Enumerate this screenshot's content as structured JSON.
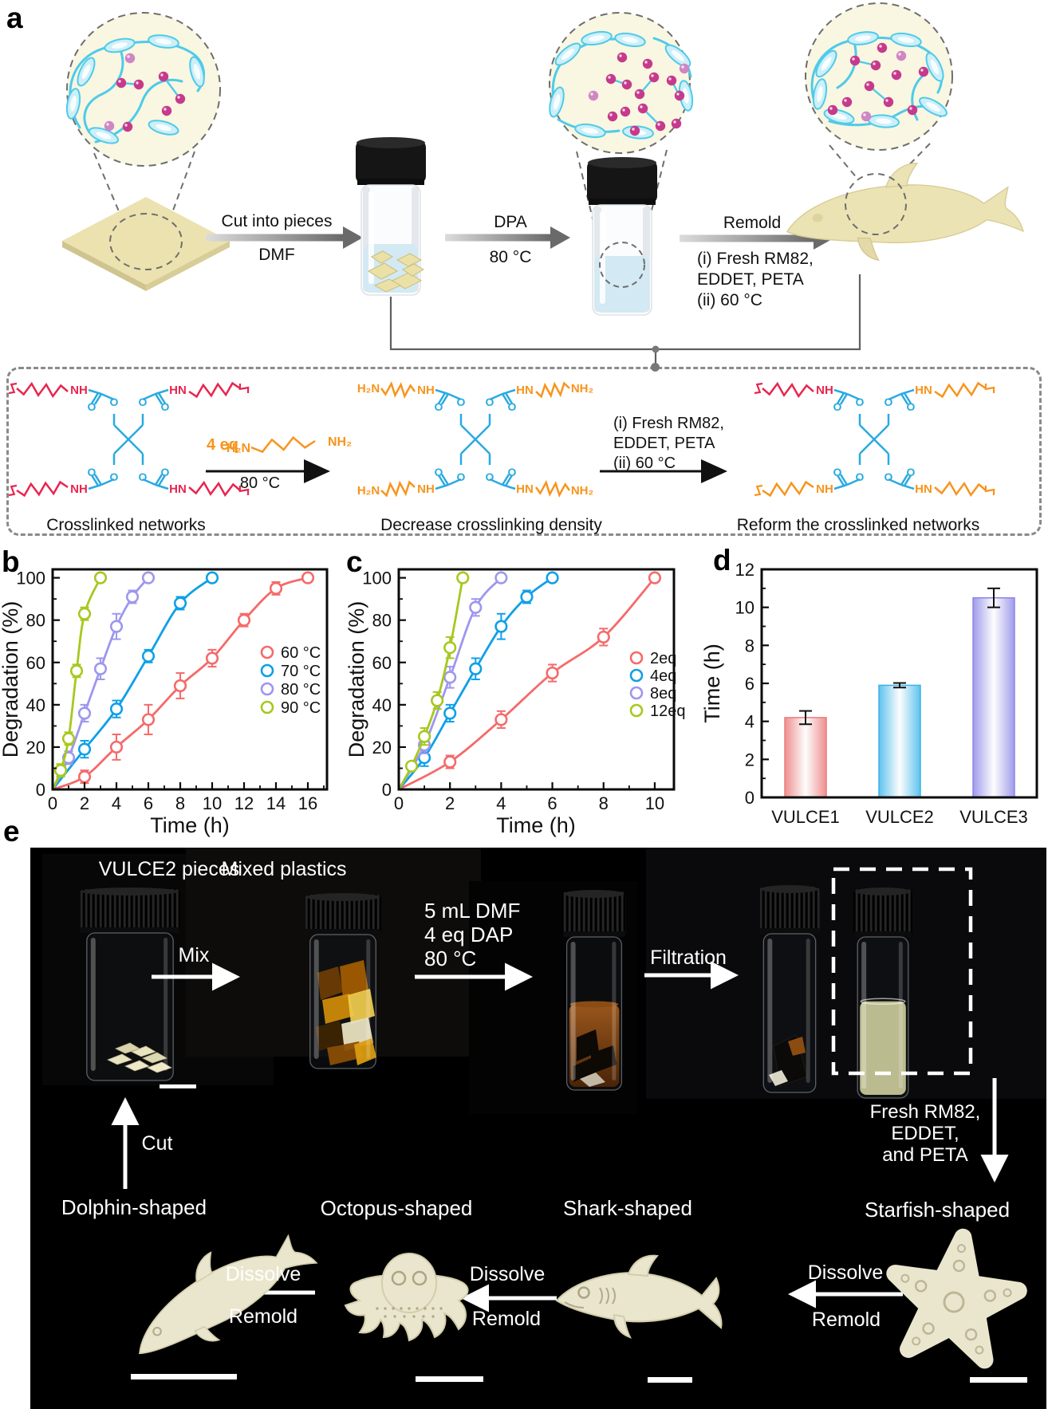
{
  "figure": {
    "panel_letters": {
      "a": "a",
      "b": "b",
      "c": "c",
      "d": "d",
      "e": "e"
    }
  },
  "panel_a": {
    "step1": {
      "top": "Cut into pieces",
      "bottom": "DMF"
    },
    "step2": {
      "top": "DPA",
      "bottom": "80 °C"
    },
    "step3": {
      "top": "Remold",
      "line1": "(i) Fresh RM82,",
      "line2": "EDDET,  PETA",
      "line3": "(ii) 60 °C"
    }
  },
  "chemistry": {
    "eq": "4 eq",
    "amine_left": "H₂N",
    "amine_right": "NH₂",
    "arrow1_below": "80 °C",
    "arrow2_line1": "(i) Fresh RM82,",
    "arrow2_line2": "EDDET,  PETA",
    "arrow2_line3": "(ii) 60 °C",
    "caption_left": "Crosslinked networks",
    "caption_middle": "Decrease crosslinking density",
    "caption_right": "Reform the crosslinked networks",
    "atoms": {
      "nh": "NH",
      "hn": "HN",
      "h2n": "H₂N",
      "nh2": "NH₂",
      "o": "O"
    }
  },
  "chart_data": [
    {
      "id": "b",
      "type": "line",
      "title": "",
      "xlabel": "Time (h)",
      "ylabel": "Degradation (%)",
      "xlim": [
        0,
        17.2
      ],
      "ylim": [
        0,
        104
      ],
      "xtick_major": 2,
      "xtick_minor": 1,
      "ytick_major": 20,
      "ytick_minor": 10,
      "grid": false,
      "legend_position": "inside-right",
      "series": [
        {
          "name": "60 °C",
          "color": "#f56a6a",
          "x": [
            2,
            4,
            6,
            8,
            10,
            12,
            14,
            16
          ],
          "y": [
            6,
            20,
            33,
            49,
            62,
            80,
            95,
            100
          ],
          "err": [
            3,
            6,
            7,
            6,
            4,
            3,
            3,
            0
          ]
        },
        {
          "name": "70 °C",
          "color": "#0fa0e8",
          "x": [
            2,
            4,
            6,
            8,
            10
          ],
          "y": [
            19,
            38,
            63,
            88,
            100
          ],
          "err": [
            4,
            4,
            3,
            3,
            0
          ]
        },
        {
          "name": "80 °C",
          "color": "#9d97ee",
          "x": [
            1,
            2,
            3,
            4,
            5,
            6
          ],
          "y": [
            15,
            36,
            57,
            77,
            91,
            100
          ],
          "err": [
            3,
            4,
            5,
            6,
            3,
            0
          ]
        },
        {
          "name": "90 °C",
          "color": "#a6c81e",
          "x": [
            0.5,
            1,
            1.5,
            2,
            3
          ],
          "y": [
            9,
            24,
            56,
            83,
            100
          ],
          "err": [
            3,
            3,
            3,
            3,
            0
          ]
        }
      ]
    },
    {
      "id": "c",
      "type": "line",
      "title": "",
      "xlabel": "Time (h)",
      "ylabel": "Degradation (%)",
      "xlim": [
        0,
        10.75
      ],
      "ylim": [
        0,
        104
      ],
      "xtick_major": 2,
      "xtick_minor": 1,
      "ytick_major": 20,
      "ytick_minor": 10,
      "grid": false,
      "legend_position": "inside-right",
      "series": [
        {
          "name": "2eq",
          "color": "#f56a6a",
          "x": [
            2,
            4,
            6,
            8,
            10
          ],
          "y": [
            13,
            33,
            55,
            72,
            100
          ],
          "err": [
            3,
            4,
            4,
            4,
            0
          ]
        },
        {
          "name": "4eq",
          "color": "#0fa0e8",
          "x": [
            1,
            2,
            3,
            4,
            5,
            6
          ],
          "y": [
            15,
            36,
            57,
            77,
            91,
            100
          ],
          "err": [
            4,
            4,
            5,
            6,
            3,
            0
          ]
        },
        {
          "name": "8eq",
          "color": "#9d97ee",
          "x": [
            1,
            2,
            3,
            4
          ],
          "y": [
            21,
            53,
            86,
            100
          ],
          "err": [
            4,
            5,
            4,
            0
          ]
        },
        {
          "name": "12eq",
          "color": "#a6c81e",
          "x": [
            0.5,
            1,
            1.5,
            2,
            2.5
          ],
          "y": [
            11,
            25,
            42,
            67,
            100
          ],
          "err": [
            2,
            4,
            4,
            5,
            0
          ]
        }
      ]
    },
    {
      "id": "d",
      "type": "bar",
      "title": "",
      "xlabel": "",
      "ylabel": "Time (h)",
      "ylim": [
        0,
        12
      ],
      "ytick_major": 2,
      "ytick_minor": 1,
      "grid": false,
      "categories": [
        "VULCE1",
        "VULCE2",
        "VULCE3"
      ],
      "values": [
        4.2,
        5.9,
        10.5
      ],
      "errors": [
        0.35,
        0.12,
        0.5
      ],
      "colors": [
        "#ef8f8f",
        "#5fc3ee",
        "#a09bec"
      ],
      "edge_colors": [
        "#e87c7c",
        "#3eb2e8",
        "#8c86e6"
      ]
    }
  ],
  "panel_e": {
    "vial1_label": "VULCE2 pieces",
    "vial2_label": "Mixed plastics",
    "mix": "Mix",
    "dmf_line1": "5 mL DMF",
    "dmf_line2": "4 eq DAP",
    "dmf_line3": "80 °C",
    "filtration": "Filtration",
    "fresh_line1": "Fresh RM82,",
    "fresh_line2": "EDDET,",
    "fresh_line3": "and PETA",
    "cut": "Cut",
    "shape1": "Dolphin-shaped",
    "shape2": "Octopus-shaped",
    "shape3": "Shark-shaped",
    "shape4": "Starfish-shaped",
    "dissolve": "Dissolve",
    "remold": "Remold"
  }
}
